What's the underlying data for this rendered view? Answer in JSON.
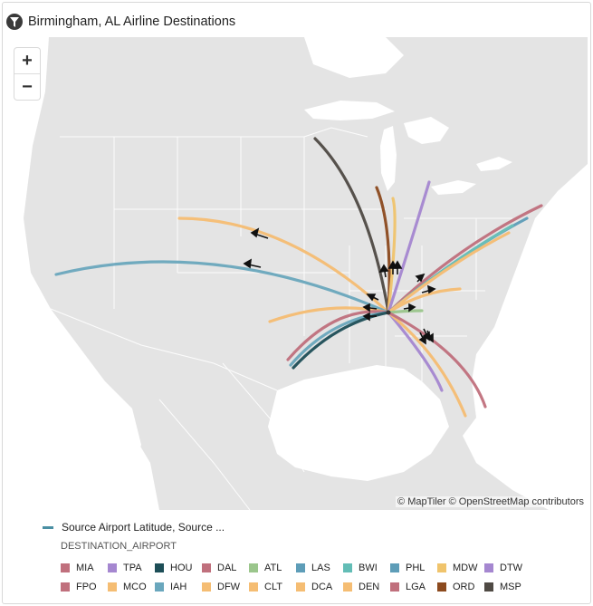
{
  "header": {
    "title": "Birmingham, AL Airline Destinations",
    "icon": "filter-icon"
  },
  "map": {
    "attribution": "© MapTiler © OpenStreetMap contributors",
    "zoom_in_label": "+",
    "zoom_out_label": "−"
  },
  "legend": {
    "measure_label": "Source Airport Latitude, Source ...",
    "group_label": "DESTINATION_AIRPORT",
    "items": [
      {
        "code": "MIA",
        "color": "#c0707d"
      },
      {
        "code": "TPA",
        "color": "#a587d0"
      },
      {
        "code": "HOU",
        "color": "#1d4e57"
      },
      {
        "code": "DAL",
        "color": "#c0707d"
      },
      {
        "code": "ATL",
        "color": "#9bc68c"
      },
      {
        "code": "LAS",
        "color": "#5e9db8"
      },
      {
        "code": "BWI",
        "color": "#63bdb6"
      },
      {
        "code": "PHL",
        "color": "#5e9db8"
      },
      {
        "code": "MDW",
        "color": "#f0c46c"
      },
      {
        "code": "DTW",
        "color": "#a587d0"
      },
      {
        "code": "FPO",
        "color": "#c0707d"
      },
      {
        "code": "MCO",
        "color": "#f5bd73"
      },
      {
        "code": "IAH",
        "color": "#6aa7bd"
      },
      {
        "code": "DFW",
        "color": "#f5bd73"
      },
      {
        "code": "CLT",
        "color": "#f5bd73"
      },
      {
        "code": "DCA",
        "color": "#f5bd73"
      },
      {
        "code": "DEN",
        "color": "#f5bd73"
      },
      {
        "code": "LGA",
        "color": "#c0707d"
      },
      {
        "code": "ORD",
        "color": "#8c4a1e"
      },
      {
        "code": "MSP",
        "color": "#4f4a44"
      }
    ]
  }
}
